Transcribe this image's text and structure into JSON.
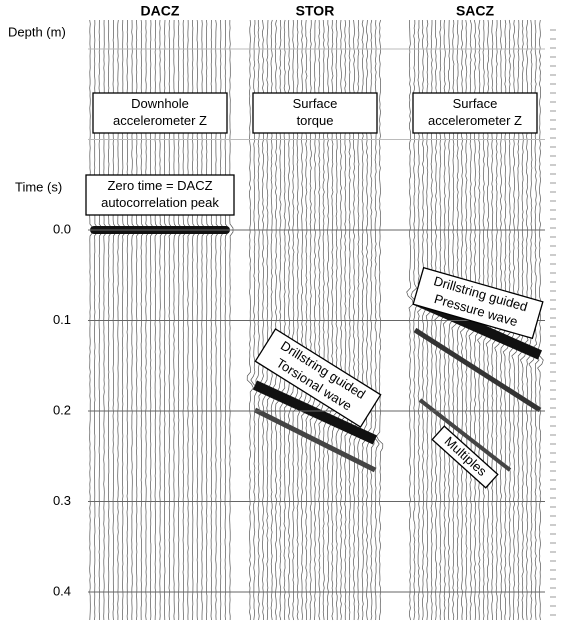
{
  "figure": {
    "depth_label": "Depth (m)",
    "time_label": "Time (s)",
    "time_ticks": [
      "0.0",
      "0.1",
      "0.2",
      "0.3",
      "0.4"
    ],
    "panels": [
      {
        "title": "DACZ",
        "label": [
          "Downhole",
          "accelerometer Z"
        ]
      },
      {
        "title": "STOR",
        "label": [
          "Surface",
          "torque"
        ]
      },
      {
        "title": "SACZ",
        "label": [
          "Surface",
          "accelerometer Z"
        ]
      }
    ],
    "annotations": {
      "zero_time": [
        "Zero time = DACZ",
        "autocorrelation peak"
      ],
      "torsional": [
        "Drillstring guided",
        "Torsional wave"
      ],
      "pressure": [
        "Drillstring guided",
        "Pressure  wave"
      ],
      "multiples": "Multiples"
    }
  }
}
